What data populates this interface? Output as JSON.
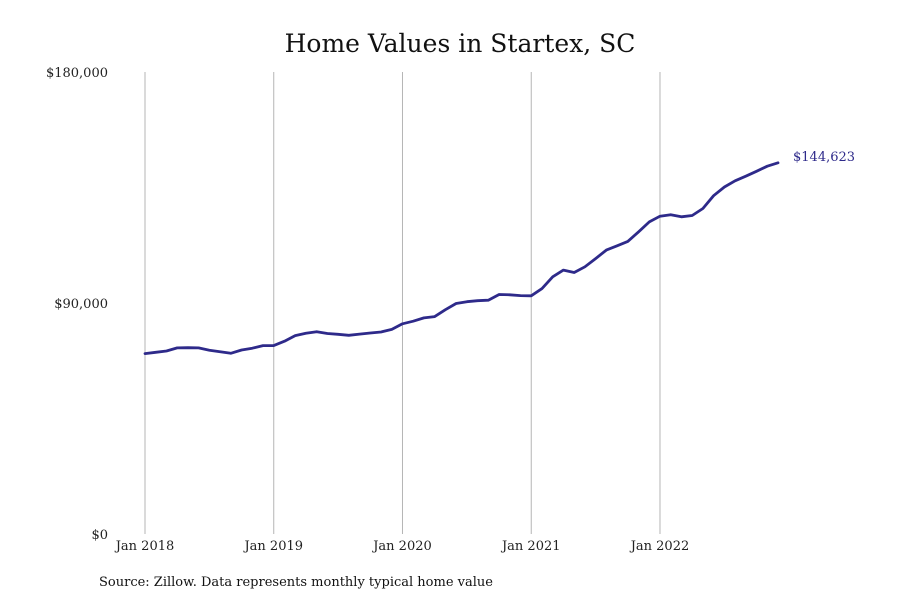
{
  "chart_data": {
    "type": "line",
    "title": "Home Values in Startex, SC",
    "xlabel": "",
    "ylabel": "",
    "source": "Source: Zillow. Data represents monthly typical home value",
    "y_ticks": [
      {
        "value": 0,
        "label": "$0"
      },
      {
        "value": 90000,
        "label": "$90,000"
      },
      {
        "value": 180000,
        "label": "$180,000"
      }
    ],
    "ylim": [
      0,
      180000
    ],
    "x_ticks": [
      {
        "value": "2018-01",
        "label": "Jan 2018"
      },
      {
        "value": "2019-01",
        "label": "Jan 2019"
      },
      {
        "value": "2020-01",
        "label": "Jan 2020"
      },
      {
        "value": "2021-01",
        "label": "Jan 2021"
      },
      {
        "value": "2022-01",
        "label": "Jan 2022"
      }
    ],
    "xlim": [
      "2018-01",
      "2022-12"
    ],
    "grid": {
      "vertical": true,
      "horizontal": false
    },
    "line_color": "#2e2a8a",
    "end_label": "$144,623",
    "series": [
      {
        "x": [
          "2018-01",
          "2018-02",
          "2018-03",
          "2018-04",
          "2018-05",
          "2018-06",
          "2018-07",
          "2018-08",
          "2018-09",
          "2018-10",
          "2018-11",
          "2018-12",
          "2019-01",
          "2019-02",
          "2019-03",
          "2019-04",
          "2019-05",
          "2019-06",
          "2019-07",
          "2019-08",
          "2019-09",
          "2019-10",
          "2019-11",
          "2019-12",
          "2020-01",
          "2020-02",
          "2020-03",
          "2020-04",
          "2020-05",
          "2020-06",
          "2020-07",
          "2020-08",
          "2020-09",
          "2020-10",
          "2020-11",
          "2020-12",
          "2021-01",
          "2021-02",
          "2021-03",
          "2021-04",
          "2021-05",
          "2021-06",
          "2021-07",
          "2021-08",
          "2021-09",
          "2021-10",
          "2021-11",
          "2021-12",
          "2022-01",
          "2022-02",
          "2022-03",
          "2022-04",
          "2022-05",
          "2022-06",
          "2022-07",
          "2022-08",
          "2022-09",
          "2022-10",
          "2022-11",
          "2022-12"
        ],
        "values": [
          70300,
          70800,
          71300,
          72500,
          72600,
          72500,
          71600,
          71000,
          70400,
          71700,
          72400,
          73400,
          73400,
          75100,
          77300,
          78200,
          78800,
          78100,
          77800,
          77400,
          77900,
          78300,
          78700,
          79700,
          81900,
          82900,
          84200,
          84700,
          87400,
          89800,
          90500,
          90900,
          91100,
          93300,
          93200,
          92900,
          92800,
          95600,
          100200,
          102800,
          101900,
          104100,
          107300,
          110600,
          112300,
          114000,
          117700,
          121600,
          123800,
          124400,
          123600,
          124100,
          126800,
          131800,
          135200,
          137600,
          139400,
          141300,
          143300,
          144623
        ]
      }
    ]
  }
}
